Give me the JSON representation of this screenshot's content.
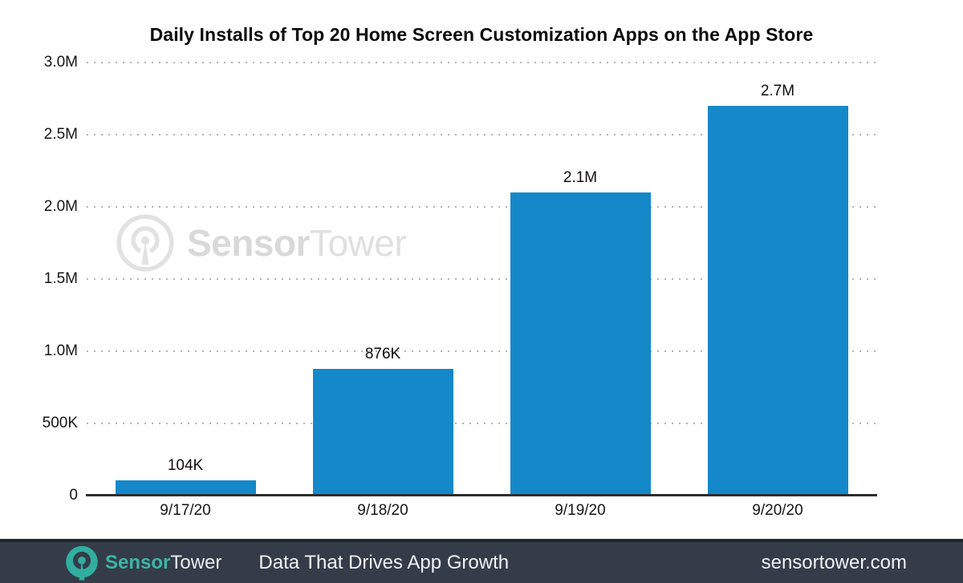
{
  "chart_data": {
    "type": "bar",
    "title": "Daily Installs of Top 20 Home Screen Customization Apps on the App Store",
    "categories": [
      "9/17/20",
      "9/18/20",
      "9/19/20",
      "9/20/20"
    ],
    "values": [
      104000,
      876000,
      2100000,
      2700000
    ],
    "value_labels": [
      "104K",
      "876K",
      "2.1M",
      "2.7M"
    ],
    "xlabel": "",
    "ylabel": "",
    "ylim": [
      0,
      3000000
    ],
    "ytick_values": [
      0,
      500000,
      1000000,
      1500000,
      2000000,
      2500000,
      3000000
    ],
    "ytick_labels": [
      "0",
      "500K",
      "1.0M",
      "1.5M",
      "2.0M",
      "2.5M",
      "3.0M"
    ],
    "grid": "horizontal-dotted",
    "legend": "none",
    "bar_color": "#1588ca"
  },
  "watermark": {
    "brand_bold": "Sensor",
    "brand_light": "Tower",
    "color": "#dcdcdc"
  },
  "footer": {
    "brand_bold": "Sensor",
    "brand_light": "Tower",
    "tagline": "Data That Drives App Growth",
    "website": "sensortower.com",
    "background_color": "#343c49",
    "accent_color": "#3db5a7"
  }
}
